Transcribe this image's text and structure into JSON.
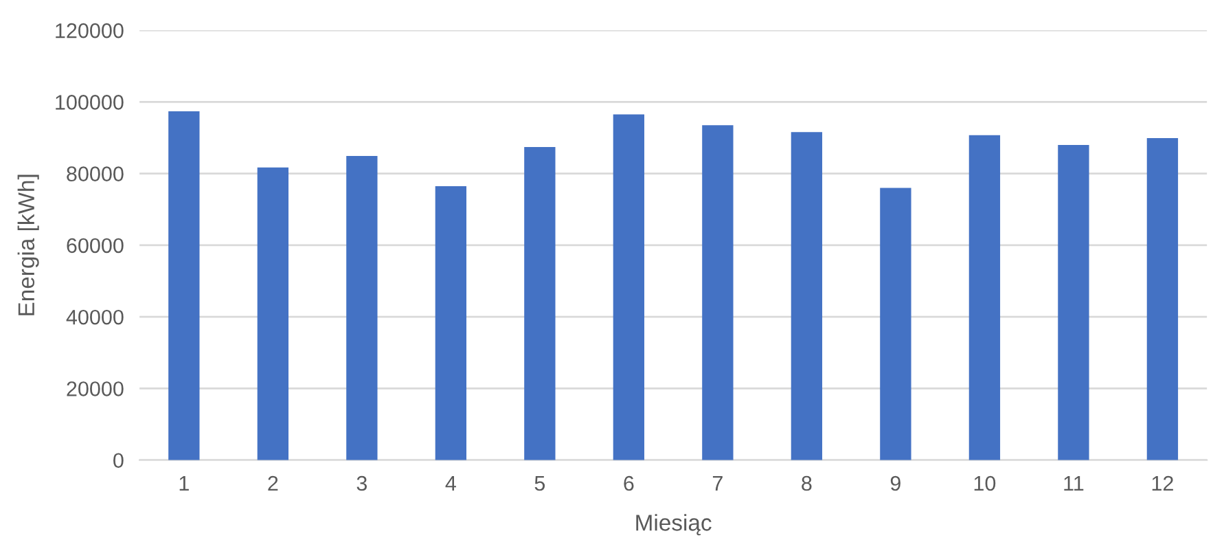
{
  "chart_data": {
    "type": "bar",
    "xlabel": "Miesiąc",
    "ylabel": "Energia [kWh]",
    "categories": [
      "1",
      "2",
      "3",
      "4",
      "5",
      "6",
      "7",
      "8",
      "9",
      "10",
      "11",
      "12"
    ],
    "values": [
      97400,
      81700,
      84900,
      76500,
      87400,
      96500,
      93500,
      91600,
      76000,
      90700,
      88000,
      89900
    ],
    "color": "#4472c4",
    "ylim": [
      0,
      120000
    ],
    "yticks": [
      0,
      20000,
      40000,
      60000,
      80000,
      100000,
      120000
    ],
    "grid": "y",
    "legend": false
  }
}
